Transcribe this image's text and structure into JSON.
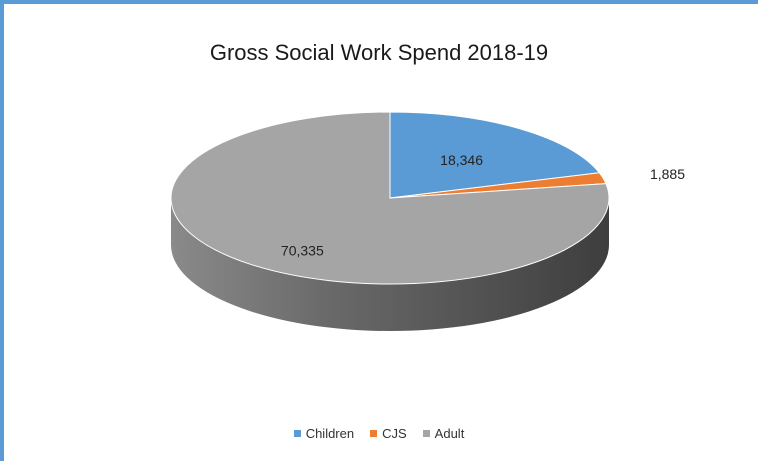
{
  "chart_data": {
    "type": "pie",
    "title": "Gross Social Work Spend 2018-19",
    "categories": [
      "Children",
      "CJS",
      "Adult"
    ],
    "values": [
      18346,
      1885,
      70335
    ],
    "data_labels": [
      "18,346",
      "1,885",
      "70,335"
    ],
    "colors": [
      "#5b9bd5",
      "#ed7d31",
      "#a5a5a5"
    ],
    "style": "3d-pie",
    "legend": "bottom"
  }
}
